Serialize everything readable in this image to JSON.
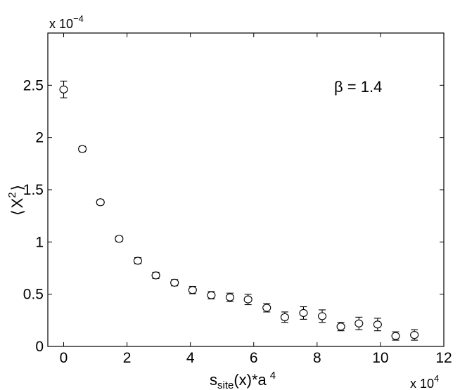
{
  "chart_data": {
    "type": "scatter",
    "title": "",
    "annotation": "β = 1.4",
    "xlabel": "s_site(x)*a^4",
    "xlabel_parts": {
      "s": "s",
      "sub": "site",
      "mid": "(x)*a",
      "sup": "4"
    },
    "ylabel": "⟨X²⟩",
    "ylabel_parts": {
      "open": "⟨",
      "base": "X",
      "sup": "2",
      "close": "⟩"
    },
    "x_exponent_label": "x 10",
    "x_exponent_power": "4",
    "y_exponent_label": "x 10",
    "y_exponent_power": "−4",
    "xlim": [
      -0.5,
      12
    ],
    "ylim": [
      0,
      3
    ],
    "xticks": [
      0,
      2,
      4,
      6,
      8,
      10,
      12
    ],
    "xtick_labels": [
      "0",
      "2",
      "4",
      "6",
      "8",
      "10",
      "12"
    ],
    "yticks": [
      0,
      0.5,
      1,
      1.5,
      2,
      2.5
    ],
    "ytick_labels": [
      "0",
      "0.5",
      "1",
      "1.5",
      "2",
      "2.5"
    ],
    "grid": false,
    "marker": "open-circle",
    "x": [
      0.0,
      0.59,
      1.16,
      1.75,
      2.34,
      2.91,
      3.5,
      4.07,
      4.66,
      5.25,
      5.82,
      6.41,
      6.98,
      7.57,
      8.16,
      8.75,
      9.32,
      9.91,
      10.48,
      11.07
    ],
    "y": [
      2.46,
      1.89,
      1.38,
      1.03,
      0.82,
      0.68,
      0.61,
      0.54,
      0.49,
      0.47,
      0.45,
      0.37,
      0.28,
      0.32,
      0.29,
      0.19,
      0.22,
      0.21,
      0.1,
      0.11
    ],
    "yerr": [
      0.08,
      0.025,
      0.025,
      0.025,
      0.03,
      0.03,
      0.03,
      0.035,
      0.035,
      0.04,
      0.05,
      0.04,
      0.05,
      0.06,
      0.06,
      0.04,
      0.06,
      0.06,
      0.04,
      0.05
    ]
  }
}
